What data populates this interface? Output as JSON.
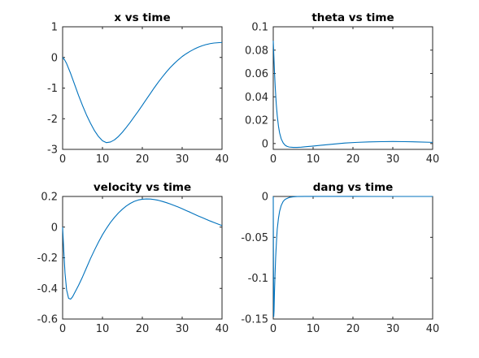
{
  "chart_data": [
    {
      "type": "line",
      "title": "x vs time",
      "xlim": [
        0,
        40
      ],
      "ylim": [
        -3,
        1
      ],
      "xticks": [
        0,
        10,
        20,
        30,
        40
      ],
      "yticks": [
        -3,
        -2,
        -1,
        0,
        1
      ],
      "grid": false,
      "color": "#0072BD",
      "x": [
        0,
        0.5,
        1,
        2,
        3,
        4,
        5,
        6,
        7,
        8,
        9,
        10,
        11,
        12,
        13,
        14,
        15,
        16,
        17,
        18,
        19,
        20,
        21,
        22,
        23,
        24,
        25,
        26,
        27,
        28,
        29,
        30,
        31,
        32,
        33,
        34,
        35,
        36,
        37,
        38,
        39,
        40
      ],
      "y": [
        0,
        -0.08,
        -0.2,
        -0.52,
        -0.88,
        -1.24,
        -1.57,
        -1.88,
        -2.15,
        -2.39,
        -2.58,
        -2.72,
        -2.78,
        -2.76,
        -2.69,
        -2.58,
        -2.44,
        -2.28,
        -2.11,
        -1.93,
        -1.75,
        -1.56,
        -1.37,
        -1.18,
        -0.99,
        -0.81,
        -0.64,
        -0.48,
        -0.33,
        -0.2,
        -0.08,
        0.03,
        0.12,
        0.2,
        0.27,
        0.33,
        0.38,
        0.42,
        0.45,
        0.47,
        0.48,
        0.49
      ]
    },
    {
      "type": "line",
      "title": "theta vs time",
      "xlim": [
        0,
        40
      ],
      "ylim": [
        -0.005,
        0.1
      ],
      "xticks": [
        0,
        10,
        20,
        30,
        40
      ],
      "yticks": [
        0,
        0.02,
        0.04,
        0.06,
        0.08,
        0.1
      ],
      "ytick_labels": [
        "0",
        "0.02",
        "0.04",
        "0.06",
        "0.08",
        "0.1"
      ],
      "grid": false,
      "color": "#0072BD",
      "x": [
        0,
        0.15,
        0.3,
        0.5,
        0.75,
        1,
        1.3,
        1.6,
        2,
        2.5,
        3,
        3.5,
        4,
        5,
        6,
        7,
        8,
        10,
        12,
        15,
        18,
        21,
        24,
        27,
        30,
        33,
        36,
        40
      ],
      "y": [
        0.088,
        0.075,
        0.062,
        0.048,
        0.034,
        0.024,
        0.015,
        0.009,
        0.004,
        0.0005,
        -0.0015,
        -0.0025,
        -0.003,
        -0.0033,
        -0.0033,
        -0.0031,
        -0.0028,
        -0.0022,
        -0.0015,
        -0.0005,
        0.0004,
        0.001,
        0.0014,
        0.0016,
        0.0017,
        0.0016,
        0.0014,
        0.001
      ]
    },
    {
      "type": "line",
      "title": "velocity vs time",
      "xlim": [
        0,
        40
      ],
      "ylim": [
        -0.6,
        0.2
      ],
      "xticks": [
        0,
        10,
        20,
        30,
        40
      ],
      "yticks": [
        -0.6,
        -0.4,
        -0.2,
        0,
        0.2
      ],
      "ytick_labels": [
        "-0.6",
        "-0.4",
        "-0.2",
        "0",
        "0.2"
      ],
      "grid": false,
      "color": "#0072BD",
      "x": [
        0,
        0.3,
        0.6,
        1,
        1.5,
        2,
        2.5,
        3,
        4,
        5,
        6,
        7,
        8,
        9,
        10,
        11,
        12,
        13,
        14,
        15,
        16,
        17,
        18,
        19,
        20,
        21,
        22,
        23,
        24,
        25,
        26,
        27,
        28,
        29,
        30,
        31,
        32,
        33,
        34,
        35,
        36,
        37,
        38,
        39,
        40
      ],
      "y": [
        0,
        -0.16,
        -0.3,
        -0.41,
        -0.465,
        -0.47,
        -0.455,
        -0.43,
        -0.38,
        -0.325,
        -0.265,
        -0.205,
        -0.15,
        -0.098,
        -0.05,
        -0.008,
        0.03,
        0.063,
        0.092,
        0.117,
        0.138,
        0.155,
        0.168,
        0.177,
        0.182,
        0.184,
        0.183,
        0.18,
        0.175,
        0.168,
        0.16,
        0.151,
        0.141,
        0.131,
        0.12,
        0.108,
        0.097,
        0.085,
        0.073,
        0.062,
        0.051,
        0.04,
        0.03,
        0.02,
        0.01
      ]
    },
    {
      "type": "line",
      "title": "dang vs time",
      "xlim": [
        0,
        40
      ],
      "ylim": [
        -0.15,
        0
      ],
      "xticks": [
        0,
        10,
        20,
        30,
        40
      ],
      "yticks": [
        -0.15,
        -0.1,
        -0.05,
        0
      ],
      "ytick_labels": [
        "-0.15",
        "-0.1",
        "-0.05",
        "0"
      ],
      "grid": false,
      "color": "#0072BD",
      "x": [
        0,
        0.05,
        0.12,
        0.2,
        0.3,
        0.45,
        0.6,
        0.8,
        1,
        1.3,
        1.6,
        2,
        2.5,
        3,
        4,
        5,
        6,
        8,
        10,
        15,
        20,
        25,
        30,
        35,
        40
      ],
      "y": [
        0,
        -0.08,
        -0.147,
        -0.14,
        -0.118,
        -0.095,
        -0.075,
        -0.056,
        -0.04,
        -0.027,
        -0.018,
        -0.011,
        -0.006,
        -0.0035,
        -0.0012,
        -0.0004,
        -0.0001,
        0.0001,
        0.0001,
        0.0001,
        5e-05,
        0,
        0,
        0,
        0
      ]
    }
  ]
}
